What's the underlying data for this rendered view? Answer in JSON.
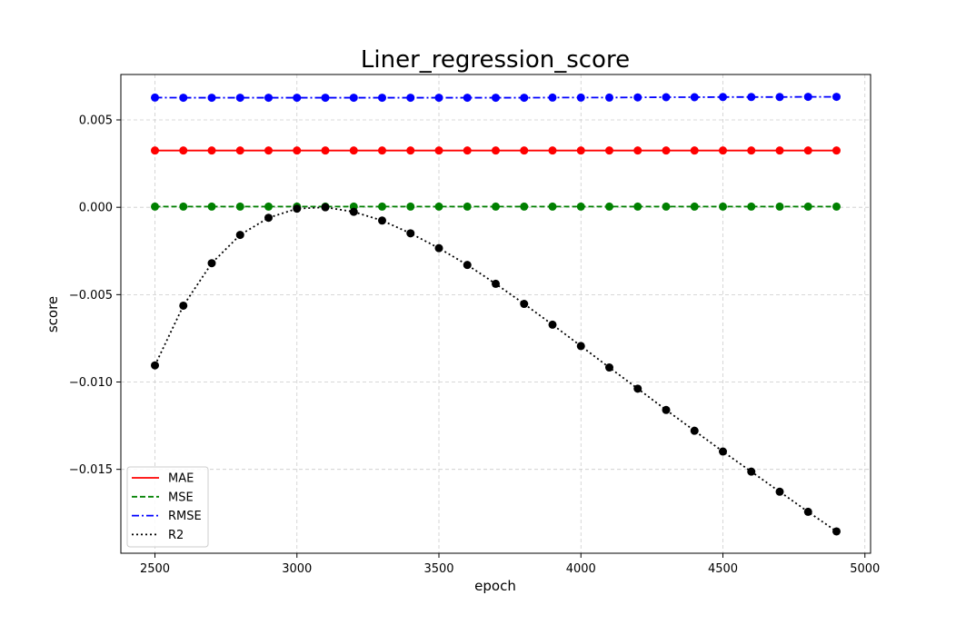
{
  "chart_data": {
    "type": "line",
    "title": "Liner_regression_score",
    "xlabel": "epoch",
    "ylabel": "score",
    "xlim": [
      2380,
      5020
    ],
    "ylim": [
      -0.0198,
      0.0076
    ],
    "x_ticks": [
      2500,
      3000,
      3500,
      4000,
      4500,
      5000
    ],
    "x_tick_labels": [
      "2500",
      "3000",
      "3500",
      "4000",
      "4500",
      "5000"
    ],
    "y_ticks": [
      0.005,
      0.0,
      -0.005,
      -0.01,
      -0.015
    ],
    "y_tick_labels": [
      "0.005",
      "0.000",
      "−0.005",
      "−0.010",
      "−0.015"
    ],
    "grid": true,
    "legend_position": "lower-left",
    "x": [
      2500,
      2600,
      2700,
      2800,
      2900,
      3000,
      3100,
      3200,
      3300,
      3400,
      3500,
      3600,
      3700,
      3800,
      3900,
      4000,
      4100,
      4200,
      4300,
      4400,
      4500,
      4600,
      4700,
      4800,
      4900
    ],
    "series": [
      {
        "name": "MAE",
        "color": "#ff0000",
        "line_style": "solid",
        "values": [
          0.00325,
          0.00325,
          0.00325,
          0.00325,
          0.00325,
          0.00325,
          0.00325,
          0.00325,
          0.00325,
          0.00325,
          0.00325,
          0.00325,
          0.00325,
          0.00325,
          0.00325,
          0.00325,
          0.00325,
          0.00325,
          0.00325,
          0.00325,
          0.00325,
          0.00325,
          0.00325,
          0.00325,
          0.00325
        ]
      },
      {
        "name": "MSE",
        "color": "#008000",
        "line_style": "dashed",
        "values": [
          4e-05,
          4e-05,
          4e-05,
          4e-05,
          4e-05,
          4e-05,
          4e-05,
          4e-05,
          4e-05,
          4e-05,
          4e-05,
          4e-05,
          4e-05,
          4e-05,
          4e-05,
          4e-05,
          4e-05,
          4e-05,
          4e-05,
          4e-05,
          4e-05,
          4e-05,
          4e-05,
          4e-05,
          4e-05
        ]
      },
      {
        "name": "RMSE",
        "color": "#0000ff",
        "line_style": "dashdot",
        "values": [
          0.00628,
          0.00627,
          0.00627,
          0.00627,
          0.00627,
          0.00627,
          0.00627,
          0.00627,
          0.00627,
          0.00627,
          0.00627,
          0.00627,
          0.00627,
          0.00627,
          0.00628,
          0.00628,
          0.00628,
          0.00629,
          0.0063,
          0.0063,
          0.00631,
          0.00631,
          0.00631,
          0.00632,
          0.00632
        ]
      },
      {
        "name": "R2",
        "color": "#000000",
        "line_style": "dotted",
        "values": [
          -0.00905,
          -0.00563,
          -0.0032,
          -0.00158,
          -0.0006,
          -8e-05,
          0.0,
          -0.00026,
          -0.00076,
          -0.00149,
          -0.00234,
          -0.0033,
          -0.00438,
          -0.00553,
          -0.00672,
          -0.00794,
          -0.00917,
          -0.01038,
          -0.0116,
          -0.01279,
          -0.01398,
          -0.01513,
          -0.01628,
          -0.01743,
          -0.01855
        ]
      }
    ]
  }
}
